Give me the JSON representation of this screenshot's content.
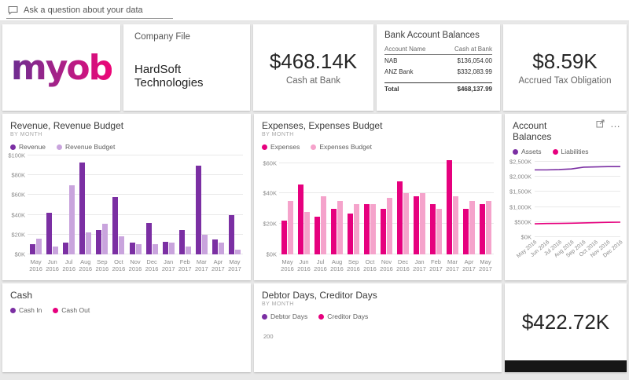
{
  "qna": {
    "placeholder": "Ask a question about your data"
  },
  "logo": {
    "text": "myob"
  },
  "company": {
    "title": "Company File",
    "name": "HardSoft Technologies"
  },
  "cash_kpi": {
    "value": "$468.14K",
    "label": "Cash at Bank"
  },
  "bank": {
    "title": "Bank Account Balances",
    "columns": [
      "Account Name",
      "Cash at Bank"
    ],
    "rows": [
      [
        "NAB",
        "$136,054.00"
      ],
      [
        "ANZ Bank",
        "$332,083.99"
      ]
    ],
    "total_label": "Total",
    "total_value": "$468,137.99"
  },
  "tax_kpi": {
    "value": "$8.59K",
    "label": "Accrued Tax Obligation"
  },
  "bottom_kpi": {
    "value": "$422.72K"
  },
  "chart_data": [
    {
      "type": "bar",
      "title": "Revenue, Revenue Budget",
      "subtitle": "BY MONTH",
      "categories": [
        "May 2016",
        "Jun 2016",
        "Jul 2016",
        "Aug 2016",
        "Sep 2016",
        "Oct 2016",
        "Nov 2016",
        "Dec 2016",
        "Jan 2017",
        "Feb 2017",
        "Mar 2017",
        "Apr 2017",
        "May 2017"
      ],
      "series": [
        {
          "name": "Revenue",
          "color": "#7b2fa3",
          "values": [
            10,
            42,
            12,
            93,
            25,
            58,
            12,
            32,
            13,
            25,
            90,
            15,
            40
          ]
        },
        {
          "name": "Revenue Budget",
          "color": "#c9a4dd",
          "values": [
            16,
            8,
            70,
            22,
            31,
            18,
            10,
            10,
            12,
            8,
            20,
            12,
            5
          ]
        }
      ],
      "ylabel": "",
      "xlabel": "",
      "ylim": [
        0,
        100
      ],
      "yticks": [
        {
          "v": 0,
          "label": "$0K"
        },
        {
          "v": 20,
          "label": "$20K"
        },
        {
          "v": 40,
          "label": "$40K"
        },
        {
          "v": 60,
          "label": "$60K"
        },
        {
          "v": 80,
          "label": "$80K"
        },
        {
          "v": 100,
          "label": "$100K"
        }
      ],
      "legend_position": "top",
      "grid": true
    },
    {
      "type": "bar",
      "title": "Expenses, Expenses Budget",
      "subtitle": "BY MONTH",
      "categories": [
        "May 2016",
        "Jun 2016",
        "Jul 2016",
        "Aug 2016",
        "Sep 2016",
        "Oct 2016",
        "Nov 2016",
        "Dec 2016",
        "Jan 2017",
        "Feb 2017",
        "Mar 2017",
        "Apr 2017",
        "May 2017"
      ],
      "series": [
        {
          "name": "Expenses",
          "color": "#e6007e",
          "values": [
            22,
            46,
            25,
            30,
            27,
            33,
            30,
            48,
            38,
            33,
            62,
            30,
            33
          ]
        },
        {
          "name": "Expenses Budget",
          "color": "#f5a3cb",
          "values": [
            35,
            28,
            38,
            35,
            33,
            33,
            37,
            40,
            40,
            30,
            38,
            35,
            35
          ]
        }
      ],
      "ylabel": "",
      "xlabel": "",
      "ylim": [
        0,
        65
      ],
      "yticks": [
        {
          "v": 0,
          "label": "$0K"
        },
        {
          "v": 20,
          "label": "$20K"
        },
        {
          "v": 40,
          "label": "$40K"
        },
        {
          "v": 60,
          "label": "$60K"
        }
      ],
      "legend_position": "top",
      "grid": true
    },
    {
      "type": "line",
      "title": "Account Balances",
      "categories": [
        "May 2016",
        "Jun 2016",
        "Jul 2016",
        "Aug 2016",
        "Sep 2016",
        "Oct 2016",
        "Nov 2016",
        "Dec 2016"
      ],
      "series": [
        {
          "name": "Assets",
          "color": "#7b2fa3",
          "values": [
            2230,
            2230,
            2240,
            2260,
            2320,
            2330,
            2340,
            2340
          ]
        },
        {
          "name": "Liabilities",
          "color": "#e6007e",
          "values": [
            440,
            450,
            455,
            460,
            470,
            480,
            490,
            495
          ]
        }
      ],
      "ylabel": "",
      "xlabel": "",
      "ylim": [
        0,
        2500
      ],
      "yticks": [
        {
          "v": 0,
          "label": "$0K"
        },
        {
          "v": 500,
          "label": "$500K"
        },
        {
          "v": 1000,
          "label": "$1,000K"
        },
        {
          "v": 1500,
          "label": "$1,500K"
        },
        {
          "v": 2000,
          "label": "$2,000K"
        },
        {
          "v": 2500,
          "label": "$2,500K"
        }
      ],
      "legend_position": "top",
      "grid": true
    },
    {
      "type": "bar",
      "title": "Cash",
      "series": [
        {
          "name": "Cash In",
          "color": "#7b2fa3"
        },
        {
          "name": "Cash Out",
          "color": "#e6007e"
        }
      ],
      "clipped": true
    },
    {
      "type": "line",
      "title": "Debtor Days, Creditor Days",
      "subtitle": "BY MONTH",
      "series": [
        {
          "name": "Debtor Days",
          "color": "#7b2fa3"
        },
        {
          "name": "Creditor Days",
          "color": "#e6007e"
        }
      ],
      "visible_yticks": [
        {
          "label": "200"
        }
      ],
      "clipped": true
    }
  ]
}
